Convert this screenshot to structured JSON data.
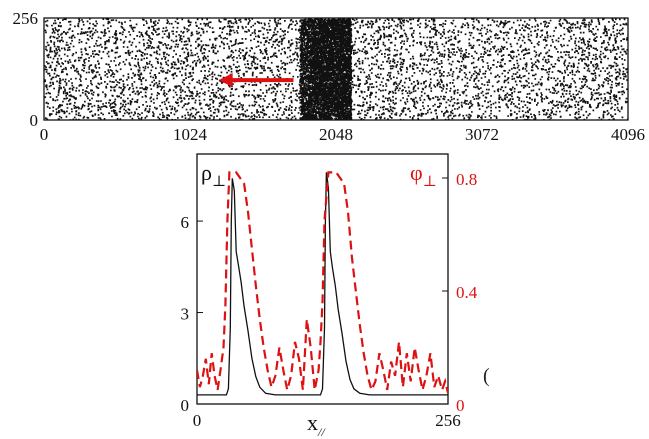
{
  "colors": {
    "black": "#111111",
    "red": "#dd1111"
  },
  "chart_data": [
    {
      "type": "scatter",
      "title": "",
      "xlim": [
        0,
        4096
      ],
      "ylim": [
        0,
        256
      ],
      "x_ticks": [
        "0",
        "1024",
        "2048",
        "3072",
        "4096"
      ],
      "y_ticks": [
        "0",
        "256"
      ],
      "band": {
        "x_from": 1790,
        "x_to": 2150
      },
      "arrow": {
        "from_x": 1750,
        "to_x": 1225,
        "y": 100
      }
    },
    {
      "type": "line",
      "title": "",
      "xlabel": "x",
      "xlabel_sub": "//",
      "xlim": [
        0,
        256
      ],
      "x_ticks": [
        "0",
        "256"
      ],
      "left_axis": {
        "label": "ρ",
        "label_sub": "⊥",
        "ylim": [
          0,
          8.2
        ],
        "ticks": [
          "0",
          "3",
          "6"
        ]
      },
      "right_axis": {
        "label": "φ",
        "label_sub": "⊥",
        "ylim": [
          0,
          0.885
        ],
        "ticks": [
          "0",
          "0.4",
          "0.8"
        ]
      },
      "series": [
        {
          "axis": "left",
          "style": "solid",
          "x": [
            0,
            10,
            20,
            30,
            32,
            34,
            35,
            36,
            38,
            40,
            42,
            45,
            48,
            52,
            56,
            60,
            64,
            70,
            80,
            90,
            100,
            110,
            120,
            126,
            128,
            130,
            131,
            132,
            134,
            136,
            138,
            141,
            144,
            148,
            152,
            156,
            160,
            166,
            176,
            190,
            210,
            230,
            250,
            256
          ],
          "y": [
            0.3,
            0.3,
            0.3,
            0.3,
            0.5,
            2.5,
            6.0,
            7.4,
            7.0,
            5.0,
            4.6,
            4.0,
            3.2,
            2.4,
            1.5,
            0.9,
            0.55,
            0.35,
            0.3,
            0.3,
            0.3,
            0.3,
            0.3,
            0.3,
            0.5,
            2.5,
            6.0,
            7.6,
            7.1,
            5.0,
            4.5,
            3.9,
            3.1,
            2.3,
            1.4,
            0.8,
            0.5,
            0.35,
            0.3,
            0.3,
            0.3,
            0.3,
            0.3,
            0.3
          ]
        },
        {
          "axis": "right",
          "style": "dashed",
          "x": [
            0,
            3,
            6,
            9,
            12,
            15,
            18,
            21,
            24,
            27,
            29,
            31,
            33,
            36,
            40,
            44,
            48,
            52,
            56,
            60,
            64,
            68,
            72,
            76,
            80,
            84,
            88,
            92,
            96,
            100,
            104,
            108,
            112,
            116,
            120,
            124,
            126,
            128,
            130,
            134,
            138,
            142,
            146,
            150,
            154,
            158,
            162,
            166,
            170,
            174,
            178,
            182,
            186,
            190,
            194,
            198,
            202,
            206,
            210,
            214,
            218,
            222,
            226,
            230,
            234,
            238,
            242,
            246,
            250,
            253,
            256
          ],
          "y": [
            0.12,
            0.06,
            0.1,
            0.16,
            0.07,
            0.18,
            0.1,
            0.05,
            0.12,
            0.2,
            0.35,
            0.65,
            0.82,
            0.82,
            0.82,
            0.8,
            0.78,
            0.68,
            0.55,
            0.42,
            0.3,
            0.2,
            0.12,
            0.06,
            0.1,
            0.2,
            0.12,
            0.05,
            0.1,
            0.22,
            0.16,
            0.05,
            0.3,
            0.2,
            0.05,
            0.12,
            0.22,
            0.36,
            0.65,
            0.82,
            0.82,
            0.82,
            0.8,
            0.78,
            0.68,
            0.52,
            0.4,
            0.28,
            0.18,
            0.1,
            0.05,
            0.08,
            0.18,
            0.12,
            0.05,
            0.15,
            0.1,
            0.22,
            0.06,
            0.18,
            0.08,
            0.2,
            0.12,
            0.05,
            0.1,
            0.18,
            0.06,
            0.1,
            0.05,
            0.08,
            0.04
          ]
        }
      ],
      "annotation": "("
    }
  ]
}
